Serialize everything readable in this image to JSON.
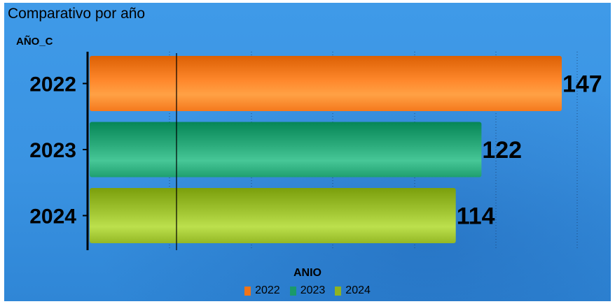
{
  "chart_data": {
    "type": "bar",
    "orientation": "horizontal",
    "title": "Comparativo por año",
    "ylabel": "AÑO_C",
    "xlabel": "",
    "legend_title": "ANIO",
    "legend_position": "bottom",
    "categories": [
      "2022",
      "2023",
      "2024"
    ],
    "values": [
      147,
      122,
      114
    ],
    "colors": [
      "#f07418",
      "#1a9a6a",
      "#8fb320"
    ],
    "xlim": [
      0,
      150
    ],
    "grid": true,
    "legend": [
      {
        "label": "2022",
        "color": "#f07418"
      },
      {
        "label": "2023",
        "color": "#1a9a6a"
      },
      {
        "label": "2024",
        "color": "#8fb320"
      }
    ]
  }
}
